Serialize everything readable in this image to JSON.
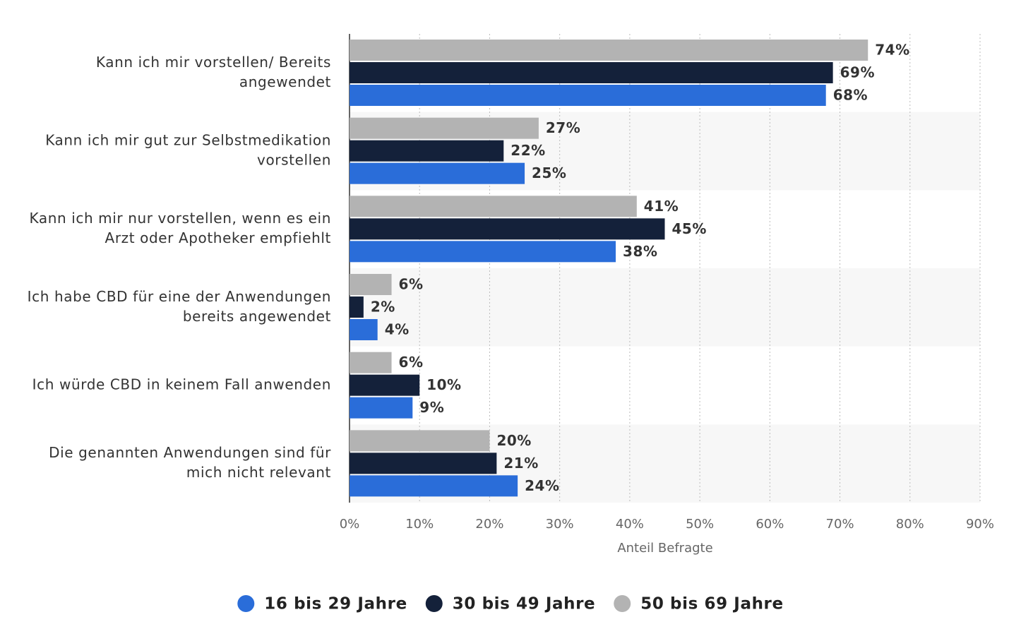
{
  "chart_data": {
    "type": "bar",
    "orientation": "horizontal",
    "categories": [
      [
        "Kann ich mir vorstellen/ Bereits",
        "angewendet"
      ],
      [
        "Kann ich mir gut zur Selbstmedikation",
        "vorstellen"
      ],
      [
        "Kann ich mir nur vorstellen, wenn es ein",
        "Arzt oder Apotheker empfiehlt"
      ],
      [
        "Ich habe CBD für eine der Anwendungen",
        "bereits angewendet"
      ],
      [
        "Ich würde CBD in keinem Fall anwenden"
      ],
      [
        "Die genannten Anwendungen sind für",
        "mich nicht relevant"
      ]
    ],
    "series": [
      {
        "name": "16 bis 29 Jahre",
        "color": "#2a6dd9",
        "values": [
          68,
          25,
          38,
          4,
          9,
          24
        ],
        "value_labels": [
          "68%",
          "25%",
          "38%",
          "4%",
          "9%",
          "24%"
        ]
      },
      {
        "name": "30 bis 49 Jahre",
        "color": "#14213a",
        "values": [
          69,
          22,
          45,
          2,
          10,
          21
        ],
        "value_labels": [
          "69%",
          "22%",
          "45%",
          "2%",
          "10%",
          "21%"
        ]
      },
      {
        "name": "50 bis 69 Jahre",
        "color": "#b3b3b3",
        "values": [
          74,
          27,
          41,
          6,
          6,
          20
        ],
        "value_labels": [
          "74%",
          "27%",
          "41%",
          "6%",
          "6%",
          "20%"
        ]
      }
    ],
    "xlabel": "Anteil Befragte",
    "xlim": [
      0,
      90
    ],
    "xticks": [
      {
        "value": 0,
        "label": "0%"
      },
      {
        "value": 10,
        "label": "10%"
      },
      {
        "value": 20,
        "label": "20%"
      },
      {
        "value": 30,
        "label": "30%"
      },
      {
        "value": 40,
        "label": "40%"
      },
      {
        "value": 50,
        "label": "50%"
      },
      {
        "value": 60,
        "label": "60%"
      },
      {
        "value": 70,
        "label": "70%"
      },
      {
        "value": 80,
        "label": "80%"
      },
      {
        "value": 90,
        "label": "90%"
      }
    ],
    "grid": true,
    "legend": "bottom"
  }
}
